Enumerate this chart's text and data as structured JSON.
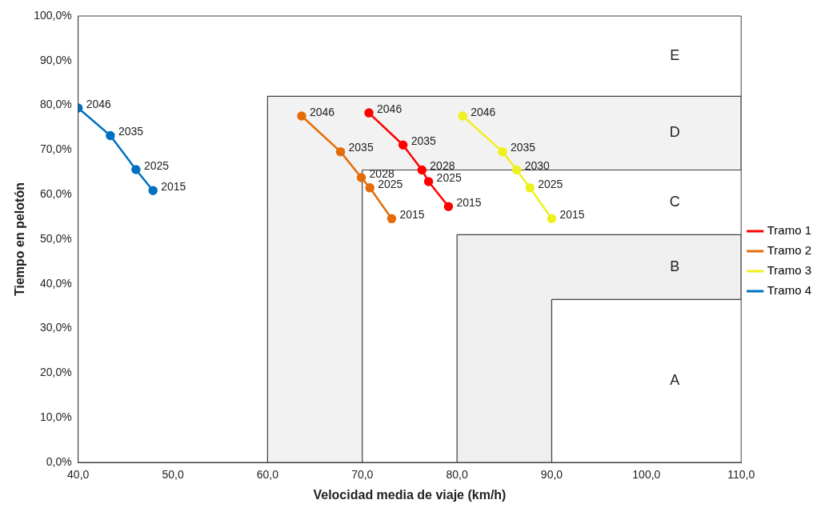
{
  "chart_data": {
    "type": "line",
    "xlabel": "Velocidad media de viaje (km/h)",
    "ylabel": "Tiempo en pelotón",
    "xlim": [
      40,
      110
    ],
    "xticks": [
      {
        "value": 40,
        "label": "40,0"
      },
      {
        "value": 50,
        "label": "50,0"
      },
      {
        "value": 60,
        "label": "60,0"
      },
      {
        "value": 70,
        "label": "70,0"
      },
      {
        "value": 80,
        "label": "80,0"
      },
      {
        "value": 90,
        "label": "90,0"
      },
      {
        "value": 100,
        "label": "100,0"
      },
      {
        "value": 110,
        "label": "110,0"
      }
    ],
    "ylim": [
      0,
      100
    ],
    "yticks": [
      {
        "value": 0,
        "label": "0,0%"
      },
      {
        "value": 10,
        "label": "10,0%"
      },
      {
        "value": 20,
        "label": "20,0%"
      },
      {
        "value": 30,
        "label": "30,0%"
      },
      {
        "value": 40,
        "label": "40,0%"
      },
      {
        "value": 50,
        "label": "50,0%"
      },
      {
        "value": 60,
        "label": "60,0%"
      },
      {
        "value": 70,
        "label": "70,0%"
      },
      {
        "value": 80,
        "label": "80,0%"
      },
      {
        "value": 90,
        "label": "90,0%"
      },
      {
        "value": 100,
        "label": "100,0%"
      }
    ],
    "grid": false,
    "legend": "right",
    "line_style": "solid",
    "series": [
      {
        "type": "area",
        "color": "#f2f2f2",
        "marker": "none",
        "x": [
          60,
          60,
          110,
          110,
          70,
          70
        ],
        "values": [
          0,
          82,
          82,
          65.5,
          65.5,
          0
        ]
      },
      {
        "type": "area",
        "color": "#efefef",
        "marker": "none",
        "x": [
          80,
          80,
          110,
          110,
          90,
          90
        ],
        "values": [
          0,
          51,
          51,
          36.5,
          36.5,
          0
        ]
      },
      {
        "name": "Tramo 1",
        "color": "#ff0000",
        "marker": "circle",
        "x": [
          70.7,
          74.3,
          76.3,
          77.0,
          79.1
        ],
        "values": [
          78.3,
          71.1,
          65.5,
          62.9,
          57.3
        ]
      },
      {
        "name": "Tramo 2",
        "color": "#e46c0a",
        "marker": "circle",
        "x": [
          63.6,
          67.7,
          69.9,
          70.8,
          73.1
        ],
        "values": [
          77.6,
          69.6,
          63.8,
          61.5,
          54.6
        ]
      },
      {
        "name": "Tramo 3",
        "color": "#f0f020",
        "marker": "circle",
        "x": [
          80.6,
          84.8,
          86.3,
          87.7,
          90.0
        ],
        "values": [
          77.6,
          69.6,
          65.5,
          61.5,
          54.6
        ]
      },
      {
        "name": "Tramo 4",
        "color": "#0070c0",
        "marker": "circle",
        "x": [
          40,
          43.4,
          46.1,
          47.9
        ],
        "values": [
          79.4,
          73.2,
          65.6,
          60.9
        ]
      }
    ],
    "annotations": [
      "E",
      "D",
      "C",
      "B",
      "A",
      {
        "text": "2046",
        "x": 70.7,
        "y": 78.3
      },
      {
        "text": "2035",
        "x": 74.3,
        "y": 71.1
      },
      {
        "text": "2028",
        "x": 76.3,
        "y": 65.5
      },
      {
        "text": "2025",
        "x": 77.0,
        "y": 62.9
      },
      {
        "text": "2015",
        "x": 79.1,
        "y": 57.3
      },
      {
        "text": "2046",
        "x": 63.6,
        "y": 77.6
      },
      {
        "text": "2035",
        "x": 67.7,
        "y": 69.6
      },
      {
        "text": "2028",
        "x": 69.9,
        "y": 63.8
      },
      {
        "text": "2025",
        "x": 70.8,
        "y": 61.5
      },
      {
        "text": "2015",
        "x": 73.1,
        "y": 54.6
      },
      {
        "text": "2046",
        "x": 80.6,
        "y": 77.6
      },
      {
        "text": "2035",
        "x": 84.8,
        "y": 69.6
      },
      {
        "text": "2030",
        "x": 86.3,
        "y": 65.5
      },
      {
        "text": "2025",
        "x": 87.7,
        "y": 61.5
      },
      {
        "text": "2015",
        "x": 90.0,
        "y": 54.6
      },
      {
        "text": "2046",
        "x": 40,
        "y": 79.4
      },
      {
        "text": "2035",
        "x": 43.4,
        "y": 73.2
      },
      {
        "text": "2025",
        "x": 46.1,
        "y": 65.6
      },
      {
        "text": "2015",
        "x": 47.9,
        "y": 60.9
      }
    ]
  }
}
